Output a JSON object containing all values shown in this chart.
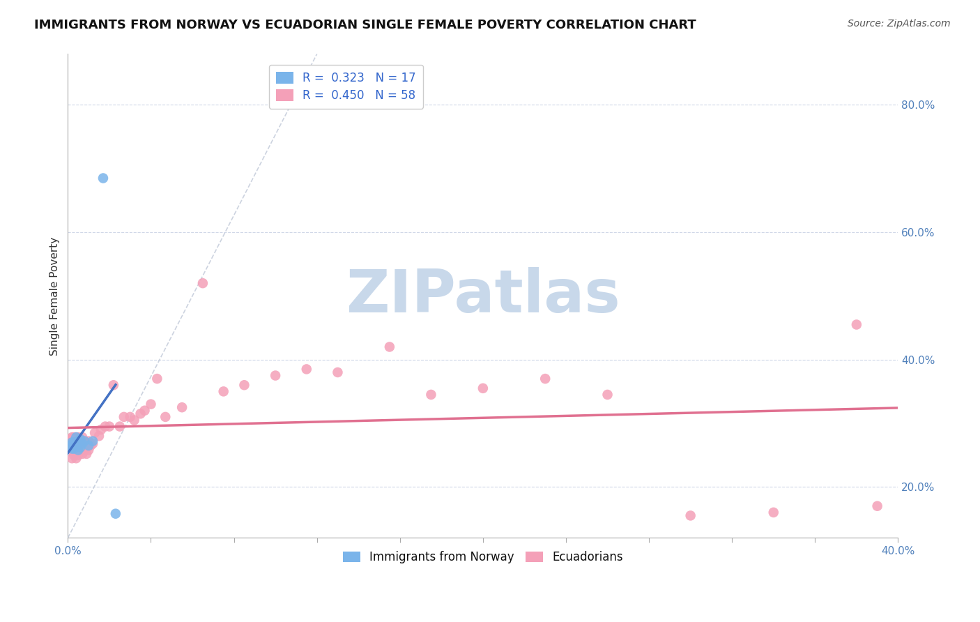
{
  "title": "IMMIGRANTS FROM NORWAY VS ECUADORIAN SINGLE FEMALE POVERTY CORRELATION CHART",
  "source_text": "Source: ZipAtlas.com",
  "ylabel": "Single Female Poverty",
  "xlim": [
    0.0,
    0.4
  ],
  "ylim": [
    0.12,
    0.88
  ],
  "right_yticks": [
    0.2,
    0.4,
    0.6,
    0.8
  ],
  "right_yticklabels": [
    "20.0%",
    "40.0%",
    "60.0%",
    "80.0%"
  ],
  "norway_r": 0.323,
  "norway_n": 17,
  "ecuador_r": 0.45,
  "ecuador_n": 58,
  "norway_color": "#7ab4ea",
  "ecuador_color": "#f4a0b8",
  "norway_line_color": "#4472c4",
  "ecuador_line_color": "#e07090",
  "watermark": "ZIPatlas",
  "watermark_color": "#c8d8ea",
  "background_color": "#ffffff",
  "grid_color": "#d0d8e8",
  "title_fontsize": 13,
  "axis_label_fontsize": 11,
  "tick_fontsize": 11,
  "legend_fontsize": 12,
  "norway_x": [
    0.001,
    0.002,
    0.002,
    0.003,
    0.003,
    0.004,
    0.004,
    0.005,
    0.005,
    0.006,
    0.006,
    0.007,
    0.008,
    0.01,
    0.012,
    0.017,
    0.023
  ],
  "norway_y": [
    0.265,
    0.26,
    0.27,
    0.26,
    0.27,
    0.265,
    0.278,
    0.258,
    0.272,
    0.262,
    0.275,
    0.268,
    0.272,
    0.265,
    0.272,
    0.685,
    0.158
  ],
  "ecuador_x": [
    0.001,
    0.001,
    0.002,
    0.002,
    0.002,
    0.003,
    0.003,
    0.003,
    0.004,
    0.004,
    0.004,
    0.005,
    0.005,
    0.005,
    0.006,
    0.006,
    0.007,
    0.007,
    0.007,
    0.008,
    0.008,
    0.009,
    0.009,
    0.01,
    0.01,
    0.011,
    0.012,
    0.013,
    0.015,
    0.016,
    0.018,
    0.02,
    0.022,
    0.025,
    0.027,
    0.03,
    0.032,
    0.035,
    0.037,
    0.04,
    0.043,
    0.047,
    0.055,
    0.065,
    0.075,
    0.085,
    0.1,
    0.115,
    0.13,
    0.155,
    0.175,
    0.2,
    0.23,
    0.26,
    0.3,
    0.34,
    0.38,
    0.39
  ],
  "ecuador_y": [
    0.26,
    0.275,
    0.245,
    0.262,
    0.278,
    0.25,
    0.265,
    0.278,
    0.245,
    0.26,
    0.278,
    0.25,
    0.265,
    0.278,
    0.258,
    0.272,
    0.252,
    0.265,
    0.278,
    0.258,
    0.272,
    0.252,
    0.268,
    0.258,
    0.272,
    0.265,
    0.268,
    0.285,
    0.28,
    0.29,
    0.295,
    0.295,
    0.36,
    0.295,
    0.31,
    0.31,
    0.305,
    0.315,
    0.32,
    0.33,
    0.37,
    0.31,
    0.325,
    0.52,
    0.35,
    0.36,
    0.375,
    0.385,
    0.38,
    0.42,
    0.345,
    0.355,
    0.37,
    0.345,
    0.155,
    0.16,
    0.455,
    0.17
  ]
}
